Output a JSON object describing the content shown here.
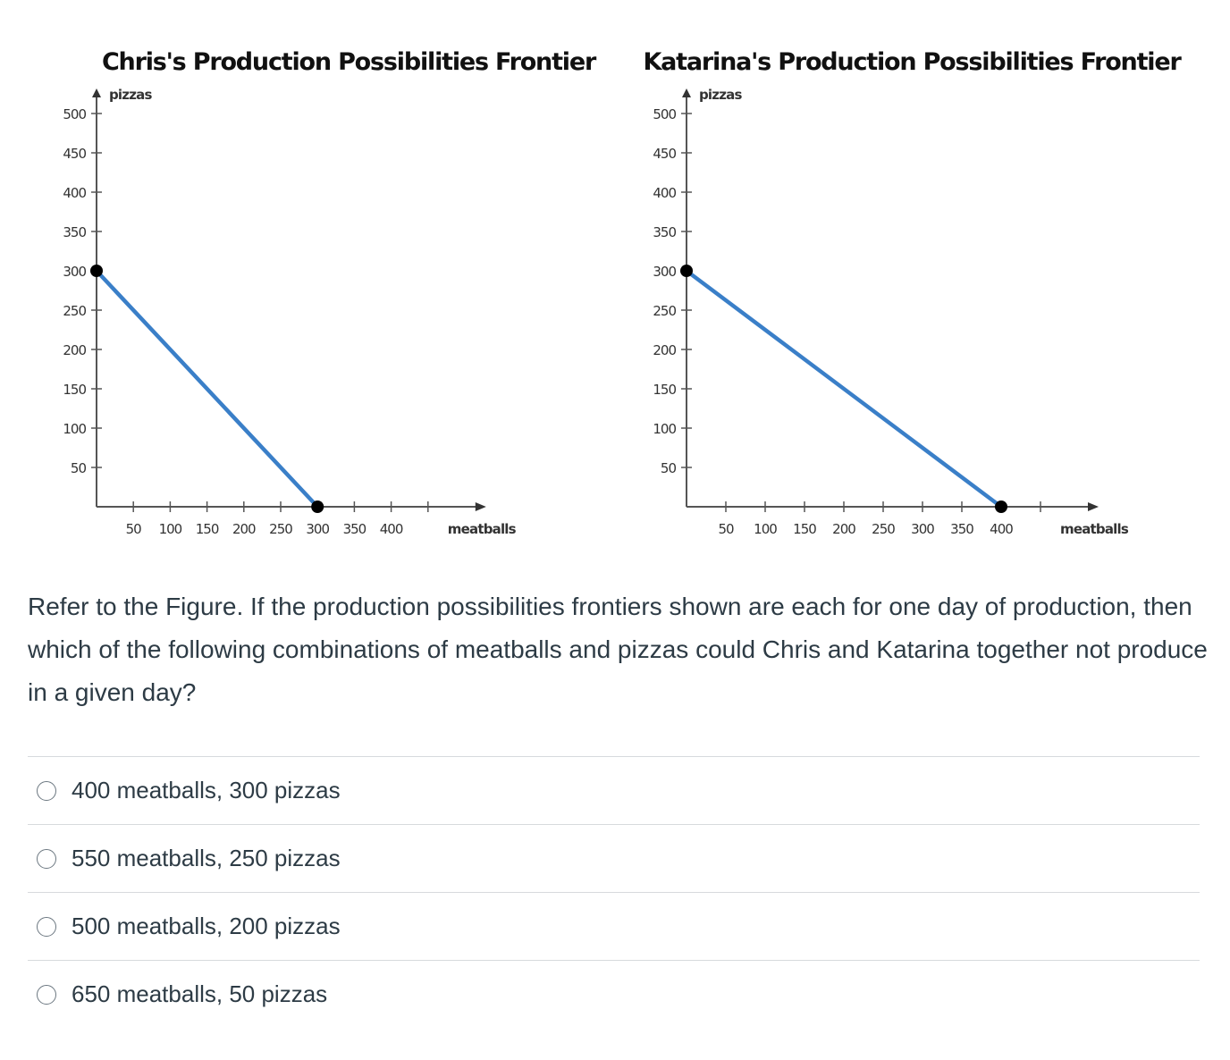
{
  "chart_data": [
    {
      "type": "line",
      "title": "Chris's Production Possibilities Frontier",
      "xlabel": "meatballs",
      "ylabel": "pizzas",
      "x_ticks": [
        50,
        100,
        150,
        200,
        250,
        300,
        350,
        400
      ],
      "y_ticks": [
        50,
        100,
        150,
        200,
        250,
        300,
        350,
        400,
        450,
        500
      ],
      "xlim": [
        0,
        450
      ],
      "ylim": [
        0,
        500
      ],
      "series": [
        {
          "x": [
            0,
            300
          ],
          "y": [
            300,
            0
          ]
        }
      ],
      "line_color": "#3a7fc8",
      "point_color": "#000000"
    },
    {
      "type": "line",
      "title": "Katarina's Production Possibilities Frontier",
      "xlabel": "meatballs",
      "ylabel": "pizzas",
      "x_ticks": [
        50,
        100,
        150,
        200,
        250,
        300,
        350,
        400
      ],
      "y_ticks": [
        50,
        100,
        150,
        200,
        250,
        300,
        350,
        400,
        450,
        500
      ],
      "xlim": [
        0,
        450
      ],
      "ylim": [
        0,
        500
      ],
      "series": [
        {
          "x": [
            0,
            400
          ],
          "y": [
            300,
            0
          ]
        }
      ],
      "line_color": "#3a7fc8",
      "point_color": "#000000"
    }
  ],
  "question": {
    "text": "Refer to the Figure. If the production possibilities frontiers shown are each for one day of production, then which of the following combinations of meatballs and pizzas could Chris and Katarina together not produce in a given day?"
  },
  "answers": [
    {
      "label": "400 meatballs, 300 pizzas",
      "selected": false
    },
    {
      "label": "550 meatballs, 250 pizzas",
      "selected": false
    },
    {
      "label": "500 meatballs, 200 pizzas",
      "selected": false
    },
    {
      "label": "650 meatballs, 50 pizzas",
      "selected": false
    }
  ]
}
